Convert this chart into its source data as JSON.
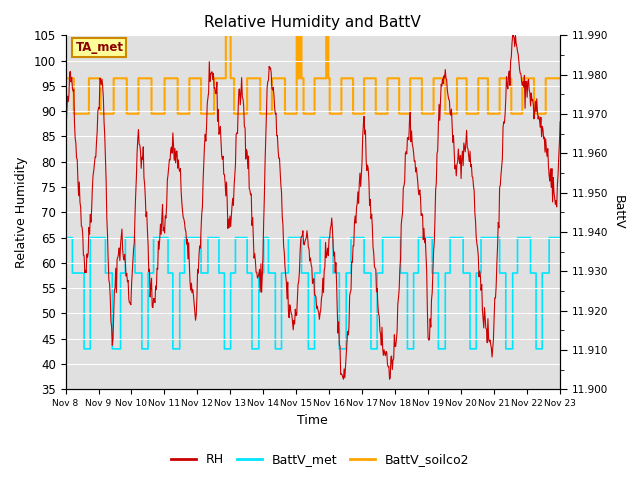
{
  "title": "Relative Humidity and BattV",
  "xlabel": "Time",
  "ylabel_left": "Relative Humidity",
  "ylabel_right": "BattV",
  "ylim_left": [
    35,
    105
  ],
  "ylim_right": [
    11.9,
    11.99
  ],
  "annotation": "TA_met",
  "bg_color": "#e0e0e0",
  "fig_color": "#ffffff",
  "rh_color": "#cc0000",
  "battv_met_color": "#00e5ff",
  "battv_soilco2_color": "#ffa500",
  "legend_labels": [
    "RH",
    "BattV_met",
    "BattV_soilco2"
  ],
  "x_tick_labels": [
    "Nov 8",
    "Nov 9",
    "Nov 10",
    "Nov 11",
    "Nov 12",
    "Nov 13",
    "Nov 14",
    "Nov 15",
    "Nov 16",
    "Nov 17",
    "Nov 18",
    "Nov 19",
    "Nov 20",
    "Nov 21",
    "Nov 22",
    "Nov 23"
  ],
  "yticks_left": [
    35,
    40,
    45,
    50,
    55,
    60,
    65,
    70,
    75,
    80,
    85,
    90,
    95,
    100,
    105
  ],
  "yticks_right_labeled": [
    11.9,
    11.91,
    11.92,
    11.93,
    11.94,
    11.95,
    11.96,
    11.97,
    11.98,
    11.99
  ],
  "yticks_right_minor": [
    11.905,
    11.915,
    11.925,
    11.935,
    11.945,
    11.955,
    11.965,
    11.975,
    11.985
  ]
}
